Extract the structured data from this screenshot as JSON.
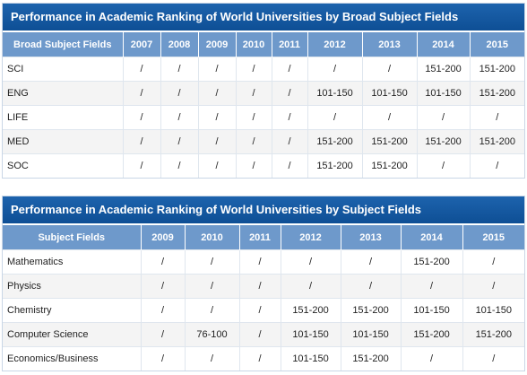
{
  "broad": {
    "title": "Performance in Academic Ranking of World Universities by Broad Subject Fields",
    "columns": [
      "Broad Subject Fields",
      "2007",
      "2008",
      "2009",
      "2010",
      "2011",
      "2012",
      "2013",
      "2014",
      "2015"
    ],
    "rows": [
      {
        "label": "SCI",
        "values": [
          "/",
          "/",
          "/",
          "/",
          "/",
          "/",
          "/",
          "151-200",
          "151-200"
        ]
      },
      {
        "label": "ENG",
        "values": [
          "/",
          "/",
          "/",
          "/",
          "/",
          "101-150",
          "101-150",
          "101-150",
          "151-200"
        ]
      },
      {
        "label": "LIFE",
        "values": [
          "/",
          "/",
          "/",
          "/",
          "/",
          "/",
          "/",
          "/",
          "/"
        ]
      },
      {
        "label": "MED",
        "values": [
          "/",
          "/",
          "/",
          "/",
          "/",
          "151-200",
          "151-200",
          "151-200",
          "151-200"
        ]
      },
      {
        "label": "SOC",
        "values": [
          "/",
          "/",
          "/",
          "/",
          "/",
          "151-200",
          "151-200",
          "/",
          "/"
        ]
      }
    ]
  },
  "subject": {
    "title": "Performance in Academic Ranking of World Universities by Subject Fields",
    "columns": [
      "Subject Fields",
      "2009",
      "2010",
      "2011",
      "2012",
      "2013",
      "2014",
      "2015"
    ],
    "rows": [
      {
        "label": "Mathematics",
        "values": [
          "/",
          "/",
          "/",
          "/",
          "/",
          "151-200",
          "/"
        ]
      },
      {
        "label": "Physics",
        "values": [
          "/",
          "/",
          "/",
          "/",
          "/",
          "/",
          "/"
        ]
      },
      {
        "label": "Chemistry",
        "values": [
          "/",
          "/",
          "/",
          "151-200",
          "151-200",
          "101-150",
          "101-150"
        ]
      },
      {
        "label": "Computer Science",
        "values": [
          "/",
          "76-100",
          "/",
          "101-150",
          "101-150",
          "151-200",
          "151-200"
        ]
      },
      {
        "label": "Economics/Business",
        "values": [
          "/",
          "/",
          "/",
          "101-150",
          "151-200",
          "/",
          "/"
        ]
      }
    ]
  }
}
